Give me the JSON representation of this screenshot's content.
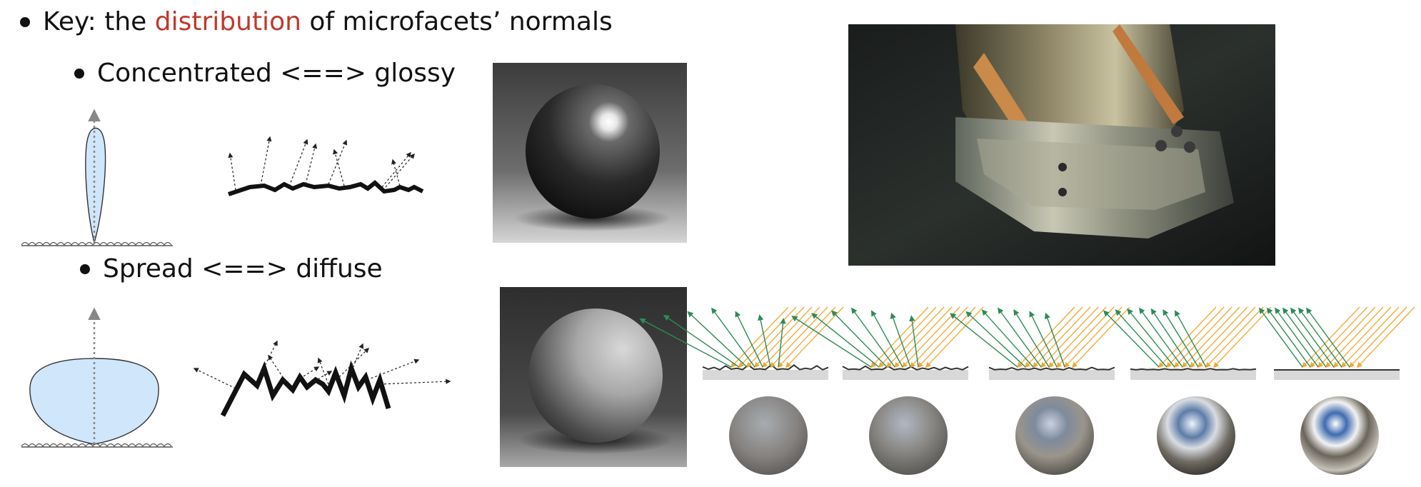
{
  "heading": {
    "prefix": "Key: the ",
    "highlight": "distribution",
    "suffix": " of microfacets’ normals"
  },
  "bullets": {
    "glossy": "Concentrated <==> glossy",
    "diffuse": "Spread <==> diffuse"
  },
  "colors": {
    "accent": "#c0392b",
    "lobe_fill": "#cfe6fb",
    "reflect_green": "#2e8b57",
    "incident_orange": "#f0a830"
  },
  "roughness_levels": [
    1.0,
    0.75,
    0.5,
    0.25,
    0.0
  ]
}
